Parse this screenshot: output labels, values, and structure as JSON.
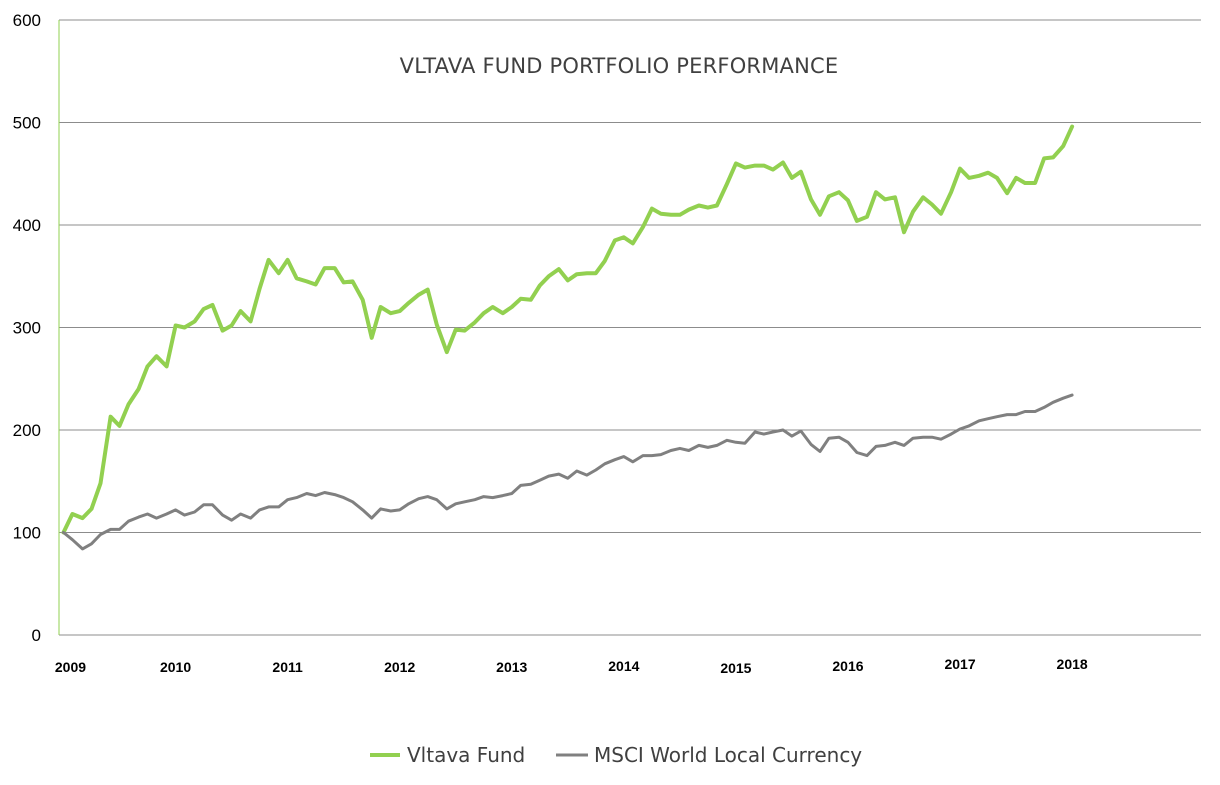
{
  "chart_data": {
    "type": "line",
    "title": "VLTAVA FUND PORTFOLIO PERFORMANCE",
    "xlabel": "",
    "ylabel": "",
    "ylim": [
      0,
      600
    ],
    "yticks": [
      "0",
      "100",
      "200",
      "300",
      "400",
      "500",
      "600"
    ],
    "xticks": [
      {
        "label": "2009",
        "x": 2009.0
      },
      {
        "label": "2010",
        "x": 2010.0
      },
      {
        "label": "2011",
        "x": 2011.0
      },
      {
        "label": "2012",
        "x": 2012.0
      },
      {
        "label": "2013",
        "x": 2013.0
      },
      {
        "label": "2014",
        "x": 2014.0
      },
      {
        "label": "2015",
        "x": 2015.0
      },
      {
        "label": "2016",
        "x": 2016.0
      },
      {
        "label": "2017",
        "x": 2017.0
      },
      {
        "label": "2018",
        "x": 2018.0
      }
    ],
    "xlim": [
      2008.96,
      2019.15
    ],
    "grid": true,
    "legend_position": "bottom",
    "series": [
      {
        "name": "Vltava Fund",
        "color": "#92D050",
        "points": [
          [
            2009.0,
            100
          ],
          [
            2009.08,
            118
          ],
          [
            2009.17,
            114
          ],
          [
            2009.25,
            123
          ],
          [
            2009.33,
            148
          ],
          [
            2009.42,
            213
          ],
          [
            2009.5,
            204
          ],
          [
            2009.58,
            225
          ],
          [
            2009.67,
            240
          ],
          [
            2009.75,
            262
          ],
          [
            2009.83,
            272
          ],
          [
            2009.92,
            262
          ],
          [
            2010.0,
            302
          ],
          [
            2010.08,
            300
          ],
          [
            2010.17,
            306
          ],
          [
            2010.25,
            318
          ],
          [
            2010.33,
            322
          ],
          [
            2010.42,
            297
          ],
          [
            2010.5,
            302
          ],
          [
            2010.58,
            316
          ],
          [
            2010.67,
            306
          ],
          [
            2010.75,
            338
          ],
          [
            2010.83,
            366
          ],
          [
            2010.92,
            353
          ],
          [
            2011.0,
            366
          ],
          [
            2011.08,
            348
          ],
          [
            2011.17,
            345
          ],
          [
            2011.25,
            342
          ],
          [
            2011.33,
            358
          ],
          [
            2011.42,
            358
          ],
          [
            2011.5,
            344
          ],
          [
            2011.58,
            345
          ],
          [
            2011.67,
            327
          ],
          [
            2011.75,
            290
          ],
          [
            2011.83,
            320
          ],
          [
            2011.92,
            314
          ],
          [
            2012.0,
            316
          ],
          [
            2012.08,
            324
          ],
          [
            2012.17,
            332
          ],
          [
            2012.25,
            337
          ],
          [
            2012.33,
            303
          ],
          [
            2012.42,
            276
          ],
          [
            2012.5,
            298
          ],
          [
            2012.58,
            297
          ],
          [
            2012.67,
            305
          ],
          [
            2012.75,
            314
          ],
          [
            2012.83,
            320
          ],
          [
            2012.92,
            314
          ],
          [
            2013.0,
            320
          ],
          [
            2013.08,
            328
          ],
          [
            2013.17,
            327
          ],
          [
            2013.25,
            341
          ],
          [
            2013.33,
            350
          ],
          [
            2013.42,
            357
          ],
          [
            2013.5,
            346
          ],
          [
            2013.58,
            352
          ],
          [
            2013.67,
            353
          ],
          [
            2013.75,
            353
          ],
          [
            2013.83,
            365
          ],
          [
            2013.92,
            385
          ],
          [
            2014.0,
            388
          ],
          [
            2014.08,
            382
          ],
          [
            2014.17,
            398
          ],
          [
            2014.25,
            416
          ],
          [
            2014.33,
            411
          ],
          [
            2014.42,
            410
          ],
          [
            2014.5,
            410
          ],
          [
            2014.58,
            415
          ],
          [
            2014.67,
            419
          ],
          [
            2014.75,
            417
          ],
          [
            2014.83,
            419
          ],
          [
            2014.92,
            440
          ],
          [
            2015.0,
            460
          ],
          [
            2015.08,
            456
          ],
          [
            2015.17,
            458
          ],
          [
            2015.25,
            458
          ],
          [
            2015.33,
            454
          ],
          [
            2015.42,
            461
          ],
          [
            2015.5,
            446
          ],
          [
            2015.58,
            452
          ],
          [
            2015.67,
            425
          ],
          [
            2015.75,
            410
          ],
          [
            2015.83,
            428
          ],
          [
            2015.92,
            432
          ],
          [
            2016.0,
            424
          ],
          [
            2016.08,
            404
          ],
          [
            2016.17,
            408
          ],
          [
            2016.25,
            432
          ],
          [
            2016.33,
            425
          ],
          [
            2016.42,
            427
          ],
          [
            2016.5,
            393
          ],
          [
            2016.58,
            413
          ],
          [
            2016.67,
            427
          ],
          [
            2016.75,
            420
          ],
          [
            2016.83,
            411
          ],
          [
            2016.92,
            432
          ],
          [
            2017.0,
            455
          ],
          [
            2017.08,
            446
          ],
          [
            2017.17,
            448
          ],
          [
            2017.25,
            451
          ],
          [
            2017.33,
            446
          ],
          [
            2017.42,
            431
          ],
          [
            2017.5,
            446
          ],
          [
            2017.58,
            441
          ],
          [
            2017.67,
            441
          ],
          [
            2017.75,
            465
          ],
          [
            2017.83,
            466
          ],
          [
            2017.92,
            477
          ],
          [
            2018.0,
            496
          ]
        ]
      },
      {
        "name": "MSCI World Local Currency",
        "color": "#808080",
        "points": [
          [
            2009.0,
            100
          ],
          [
            2009.08,
            93
          ],
          [
            2009.17,
            84
          ],
          [
            2009.25,
            89
          ],
          [
            2009.33,
            98
          ],
          [
            2009.42,
            103
          ],
          [
            2009.5,
            103
          ],
          [
            2009.58,
            111
          ],
          [
            2009.67,
            115
          ],
          [
            2009.75,
            118
          ],
          [
            2009.83,
            114
          ],
          [
            2009.92,
            118
          ],
          [
            2010.0,
            122
          ],
          [
            2010.08,
            117
          ],
          [
            2010.17,
            120
          ],
          [
            2010.25,
            127
          ],
          [
            2010.33,
            127
          ],
          [
            2010.42,
            117
          ],
          [
            2010.5,
            112
          ],
          [
            2010.58,
            118
          ],
          [
            2010.67,
            114
          ],
          [
            2010.75,
            122
          ],
          [
            2010.83,
            125
          ],
          [
            2010.92,
            125
          ],
          [
            2011.0,
            132
          ],
          [
            2011.08,
            134
          ],
          [
            2011.17,
            138
          ],
          [
            2011.25,
            136
          ],
          [
            2011.33,
            139
          ],
          [
            2011.42,
            137
          ],
          [
            2011.5,
            134
          ],
          [
            2011.58,
            130
          ],
          [
            2011.67,
            122
          ],
          [
            2011.75,
            114
          ],
          [
            2011.83,
            123
          ],
          [
            2011.92,
            121
          ],
          [
            2012.0,
            122
          ],
          [
            2012.08,
            128
          ],
          [
            2012.17,
            133
          ],
          [
            2012.25,
            135
          ],
          [
            2012.33,
            132
          ],
          [
            2012.42,
            123
          ],
          [
            2012.5,
            128
          ],
          [
            2012.58,
            130
          ],
          [
            2012.67,
            132
          ],
          [
            2012.75,
            135
          ],
          [
            2012.83,
            134
          ],
          [
            2012.92,
            136
          ],
          [
            2013.0,
            138
          ],
          [
            2013.08,
            146
          ],
          [
            2013.17,
            147
          ],
          [
            2013.25,
            151
          ],
          [
            2013.33,
            155
          ],
          [
            2013.42,
            157
          ],
          [
            2013.5,
            153
          ],
          [
            2013.58,
            160
          ],
          [
            2013.67,
            156
          ],
          [
            2013.75,
            161
          ],
          [
            2013.83,
            167
          ],
          [
            2013.92,
            171
          ],
          [
            2014.0,
            174
          ],
          [
            2014.08,
            169
          ],
          [
            2014.17,
            175
          ],
          [
            2014.25,
            175
          ],
          [
            2014.33,
            176
          ],
          [
            2014.42,
            180
          ],
          [
            2014.5,
            182
          ],
          [
            2014.58,
            180
          ],
          [
            2014.67,
            185
          ],
          [
            2014.75,
            183
          ],
          [
            2014.83,
            185
          ],
          [
            2014.92,
            190
          ],
          [
            2015.0,
            188
          ],
          [
            2015.08,
            187
          ],
          [
            2015.17,
            198
          ],
          [
            2015.25,
            196
          ],
          [
            2015.33,
            198
          ],
          [
            2015.42,
            200
          ],
          [
            2015.5,
            194
          ],
          [
            2015.58,
            199
          ],
          [
            2015.67,
            186
          ],
          [
            2015.75,
            179
          ],
          [
            2015.83,
            192
          ],
          [
            2015.92,
            193
          ],
          [
            2016.0,
            188
          ],
          [
            2016.08,
            178
          ],
          [
            2016.17,
            175
          ],
          [
            2016.25,
            184
          ],
          [
            2016.33,
            185
          ],
          [
            2016.42,
            188
          ],
          [
            2016.5,
            185
          ],
          [
            2016.58,
            192
          ],
          [
            2016.67,
            193
          ],
          [
            2016.75,
            193
          ],
          [
            2016.83,
            191
          ],
          [
            2016.92,
            196
          ],
          [
            2017.0,
            201
          ],
          [
            2017.08,
            204
          ],
          [
            2017.17,
            209
          ],
          [
            2017.25,
            211
          ],
          [
            2017.33,
            213
          ],
          [
            2017.42,
            215
          ],
          [
            2017.5,
            215
          ],
          [
            2017.58,
            218
          ],
          [
            2017.67,
            218
          ],
          [
            2017.75,
            222
          ],
          [
            2017.83,
            227
          ],
          [
            2017.92,
            231
          ],
          [
            2018.0,
            234
          ]
        ]
      }
    ]
  }
}
